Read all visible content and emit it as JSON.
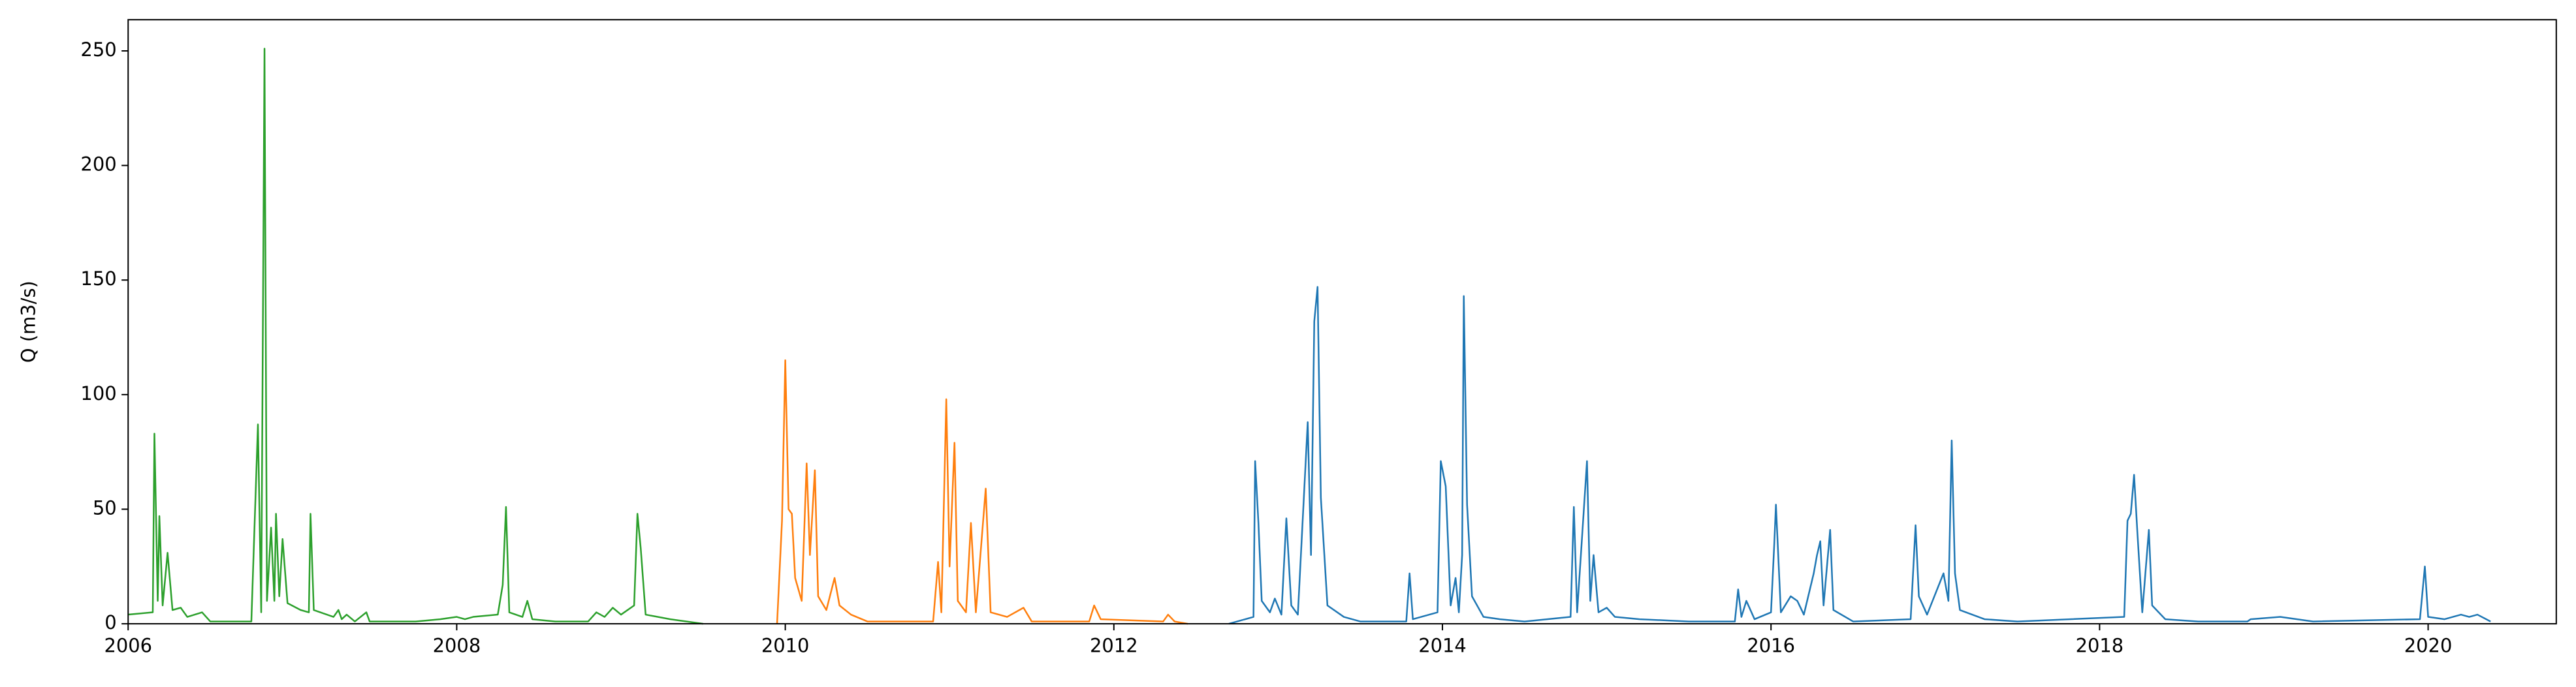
{
  "chart_data": {
    "type": "line",
    "ylabel": "Q (m3/s)",
    "xlim": [
      2006,
      2020.78
    ],
    "xticks": [
      2006,
      2008,
      2010,
      2012,
      2014,
      2016,
      2018,
      2020
    ],
    "ylim": [
      0,
      263.6
    ],
    "yticks": [
      0,
      50,
      100,
      150,
      200,
      250
    ],
    "series": [
      {
        "color": "#2ca02c",
        "x": [
          2006.0,
          2006.15,
          2006.16,
          2006.18,
          2006.19,
          2006.21,
          2006.24,
          2006.27,
          2006.32,
          2006.36,
          2006.45,
          2006.5,
          2006.75,
          2006.79,
          2006.81,
          2006.83,
          2006.845,
          2006.87,
          2006.89,
          2006.9,
          2006.92,
          2006.94,
          2006.97,
          2007.05,
          2007.1,
          2007.11,
          2007.13,
          2007.25,
          2007.28,
          2007.3,
          2007.33,
          2007.38,
          2007.45,
          2007.47,
          2007.75,
          2007.9,
          2008.0,
          2008.05,
          2008.1,
          2008.25,
          2008.28,
          2008.3,
          2008.32,
          2008.4,
          2008.43,
          2008.46,
          2008.6,
          2008.8,
          2008.85,
          2008.9,
          2008.95,
          2009.0,
          2009.08,
          2009.1,
          2009.12,
          2009.15,
          2009.3,
          2009.4,
          2009.5
        ],
        "values": [
          4,
          5,
          83,
          10,
          47,
          8,
          31,
          6,
          7,
          3,
          5,
          1,
          1,
          87,
          5,
          251,
          10,
          42,
          10,
          48,
          12,
          37,
          9,
          6,
          5,
          48,
          6,
          3,
          6,
          2,
          4,
          1,
          5,
          1,
          1,
          2,
          3,
          2,
          3,
          4,
          17,
          51,
          5,
          3,
          10,
          2,
          1,
          1,
          5,
          3,
          7,
          4,
          8,
          48,
          33,
          4,
          2,
          1,
          0
        ]
      },
      {
        "color": "#ff7f0e",
        "x": [
          2009.95,
          2009.98,
          2010.0,
          2010.02,
          2010.04,
          2010.06,
          2010.1,
          2010.13,
          2010.15,
          2010.18,
          2010.2,
          2010.25,
          2010.3,
          2010.33,
          2010.4,
          2010.5,
          2010.9,
          2010.93,
          2010.95,
          2010.98,
          2011.0,
          2011.03,
          2011.05,
          2011.1,
          2011.13,
          2011.16,
          2011.22,
          2011.25,
          2011.35,
          2011.45,
          2011.5,
          2011.85,
          2011.88,
          2011.92,
          2012.3,
          2012.33,
          2012.37,
          2012.45
        ],
        "values": [
          0,
          45,
          115,
          50,
          48,
          20,
          10,
          70,
          30,
          67,
          12,
          6,
          20,
          8,
          4,
          1,
          1,
          27,
          5,
          98,
          25,
          79,
          10,
          5,
          44,
          5,
          59,
          5,
          3,
          7,
          1,
          1,
          8,
          2,
          1,
          4,
          1,
          0
        ]
      },
      {
        "color": "#1f77b4",
        "x": [
          2012.7,
          2012.85,
          2012.86,
          2012.88,
          2012.9,
          2012.95,
          2012.98,
          2013.02,
          2013.05,
          2013.08,
          2013.12,
          2013.18,
          2013.2,
          2013.22,
          2013.24,
          2013.26,
          2013.3,
          2013.4,
          2013.5,
          2013.78,
          2013.8,
          2013.82,
          2013.97,
          2013.99,
          2014.02,
          2014.05,
          2014.08,
          2014.1,
          2014.12,
          2014.13,
          2014.15,
          2014.18,
          2014.25,
          2014.35,
          2014.5,
          2014.78,
          2014.8,
          2014.82,
          2014.88,
          2014.9,
          2014.92,
          2014.95,
          2015.0,
          2015.05,
          2015.2,
          2015.5,
          2015.78,
          2015.8,
          2015.82,
          2015.85,
          2015.9,
          2016.0,
          2016.02,
          2016.03,
          2016.06,
          2016.12,
          2016.16,
          2016.2,
          2016.26,
          2016.28,
          2016.3,
          2016.32,
          2016.36,
          2016.38,
          2016.5,
          2016.85,
          2016.88,
          2016.9,
          2016.95,
          2017.05,
          2017.08,
          2017.1,
          2017.12,
          2017.15,
          2017.3,
          2017.5,
          2018.15,
          2018.17,
          2018.19,
          2018.21,
          2018.23,
          2018.26,
          2018.3,
          2018.32,
          2018.4,
          2018.6,
          2018.9,
          2018.92,
          2019.1,
          2019.3,
          2019.95,
          2019.98,
          2020.0,
          2020.1,
          2020.2,
          2020.25,
          2020.3,
          2020.38
        ],
        "values": [
          0,
          3,
          71,
          44,
          10,
          5,
          11,
          4,
          46,
          8,
          4,
          88,
          30,
          132,
          147,
          55,
          8,
          3,
          1,
          1,
          22,
          2,
          5,
          71,
          60,
          8,
          20,
          5,
          30,
          143,
          52,
          12,
          3,
          2,
          1,
          3,
          51,
          5,
          71,
          10,
          30,
          5,
          7,
          3,
          2,
          1,
          1,
          15,
          3,
          10,
          2,
          5,
          35,
          52,
          5,
          12,
          10,
          4,
          22,
          30,
          36,
          8,
          41,
          6,
          1,
          2,
          43,
          12,
          4,
          22,
          10,
          80,
          22,
          6,
          2,
          1,
          3,
          45,
          48,
          65,
          40,
          5,
          41,
          8,
          2,
          1,
          1,
          2,
          3,
          1,
          2,
          25,
          3,
          2,
          4,
          3,
          4,
          1
        ]
      }
    ]
  }
}
